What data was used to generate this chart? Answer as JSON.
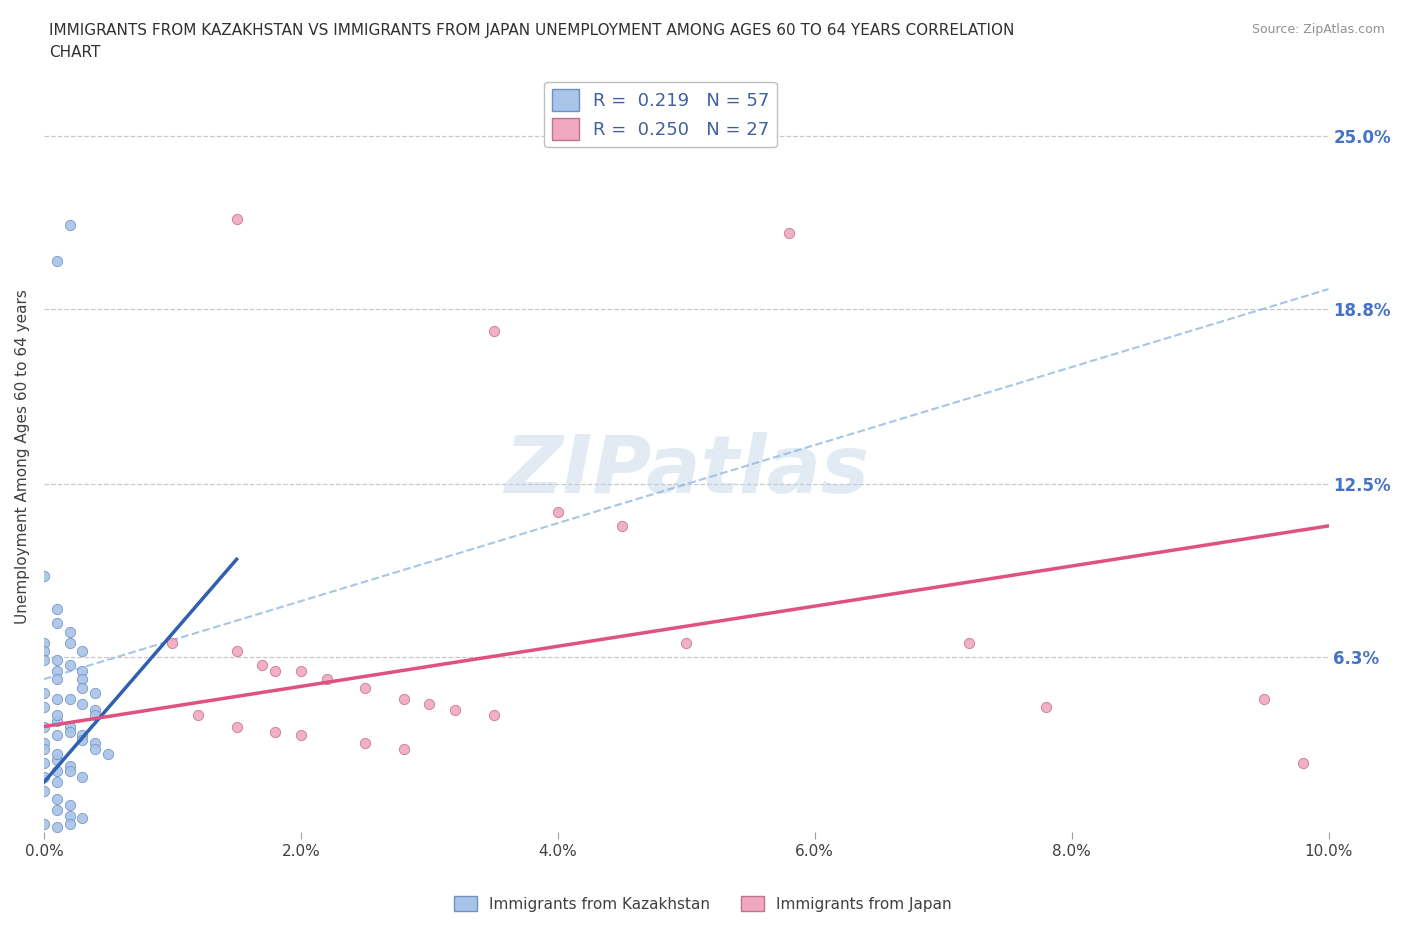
{
  "title_line1": "IMMIGRANTS FROM KAZAKHSTAN VS IMMIGRANTS FROM JAPAN UNEMPLOYMENT AMONG AGES 60 TO 64 YEARS CORRELATION",
  "title_line2": "CHART",
  "source_text": "Source: ZipAtlas.com",
  "ylabel": "Unemployment Among Ages 60 to 64 years",
  "xlim": [
    0.0,
    0.1
  ],
  "ylim": [
    0.0,
    0.27
  ],
  "xtick_labels": [
    "0.0%",
    "2.0%",
    "4.0%",
    "6.0%",
    "8.0%",
    "10.0%"
  ],
  "xtick_values": [
    0.0,
    0.02,
    0.04,
    0.06,
    0.08,
    0.1
  ],
  "ytick_labels": [
    "6.3%",
    "12.5%",
    "18.8%",
    "25.0%"
  ],
  "ytick_values": [
    0.063,
    0.125,
    0.188,
    0.25
  ],
  "watermark": "ZIPatlas",
  "legend_kaz_R": "0.219",
  "legend_kaz_N": "57",
  "legend_jpn_R": "0.250",
  "legend_jpn_N": "27",
  "kaz_color": "#a8c4e8",
  "jpn_color": "#f0a8c0",
  "kaz_line_color": "#3060b0",
  "jpn_line_color": "#e05080",
  "dashed_line_color": "#90b8e0",
  "grid_color": "#c8c8c8",
  "background_color": "#ffffff",
  "kaz_scatter": [
    [
      0.001,
      0.205
    ],
    [
      0.002,
      0.218
    ],
    [
      0.0,
      0.092
    ],
    [
      0.001,
      0.08
    ],
    [
      0.001,
      0.075
    ],
    [
      0.002,
      0.072
    ],
    [
      0.002,
      0.068
    ],
    [
      0.003,
      0.065
    ],
    [
      0.001,
      0.062
    ],
    [
      0.002,
      0.06
    ],
    [
      0.003,
      0.058
    ],
    [
      0.003,
      0.055
    ],
    [
      0.003,
      0.052
    ],
    [
      0.004,
      0.05
    ],
    [
      0.002,
      0.048
    ],
    [
      0.003,
      0.046
    ],
    [
      0.004,
      0.044
    ],
    [
      0.004,
      0.042
    ],
    [
      0.001,
      0.04
    ],
    [
      0.002,
      0.038
    ],
    [
      0.002,
      0.036
    ],
    [
      0.003,
      0.035
    ],
    [
      0.003,
      0.033
    ],
    [
      0.004,
      0.032
    ],
    [
      0.004,
      0.03
    ],
    [
      0.005,
      0.028
    ],
    [
      0.001,
      0.026
    ],
    [
      0.002,
      0.024
    ],
    [
      0.002,
      0.022
    ],
    [
      0.003,
      0.02
    ],
    [
      0.0,
      0.068
    ],
    [
      0.0,
      0.065
    ],
    [
      0.0,
      0.062
    ],
    [
      0.001,
      0.058
    ],
    [
      0.001,
      0.055
    ],
    [
      0.0,
      0.05
    ],
    [
      0.001,
      0.048
    ],
    [
      0.0,
      0.045
    ],
    [
      0.001,
      0.042
    ],
    [
      0.0,
      0.038
    ],
    [
      0.001,
      0.035
    ],
    [
      0.0,
      0.032
    ],
    [
      0.0,
      0.03
    ],
    [
      0.001,
      0.028
    ],
    [
      0.0,
      0.025
    ],
    [
      0.001,
      0.022
    ],
    [
      0.0,
      0.02
    ],
    [
      0.001,
      0.018
    ],
    [
      0.0,
      0.015
    ],
    [
      0.001,
      0.012
    ],
    [
      0.002,
      0.01
    ],
    [
      0.001,
      0.008
    ],
    [
      0.002,
      0.006
    ],
    [
      0.003,
      0.005
    ],
    [
      0.002,
      0.003
    ],
    [
      0.0,
      0.003
    ],
    [
      0.001,
      0.002
    ]
  ],
  "jpn_scatter": [
    [
      0.015,
      0.22
    ],
    [
      0.035,
      0.18
    ],
    [
      0.058,
      0.215
    ],
    [
      0.04,
      0.115
    ],
    [
      0.045,
      0.11
    ],
    [
      0.01,
      0.068
    ],
    [
      0.015,
      0.065
    ],
    [
      0.017,
      0.06
    ],
    [
      0.018,
      0.058
    ],
    [
      0.02,
      0.058
    ],
    [
      0.022,
      0.055
    ],
    [
      0.025,
      0.052
    ],
    [
      0.028,
      0.048
    ],
    [
      0.03,
      0.046
    ],
    [
      0.032,
      0.044
    ],
    [
      0.035,
      0.042
    ],
    [
      0.012,
      0.042
    ],
    [
      0.015,
      0.038
    ],
    [
      0.018,
      0.036
    ],
    [
      0.02,
      0.035
    ],
    [
      0.025,
      0.032
    ],
    [
      0.028,
      0.03
    ],
    [
      0.05,
      0.068
    ],
    [
      0.072,
      0.068
    ],
    [
      0.078,
      0.045
    ],
    [
      0.095,
      0.048
    ],
    [
      0.098,
      0.025
    ]
  ],
  "kaz_trend_x": [
    0.0,
    0.015
  ],
  "kaz_trend_y": [
    0.018,
    0.098
  ],
  "jpn_trend_x": [
    0.0,
    0.1
  ],
  "jpn_trend_y": [
    0.038,
    0.11
  ],
  "dashed_trend_x": [
    0.0,
    0.1
  ],
  "dashed_trend_y": [
    0.055,
    0.195
  ]
}
